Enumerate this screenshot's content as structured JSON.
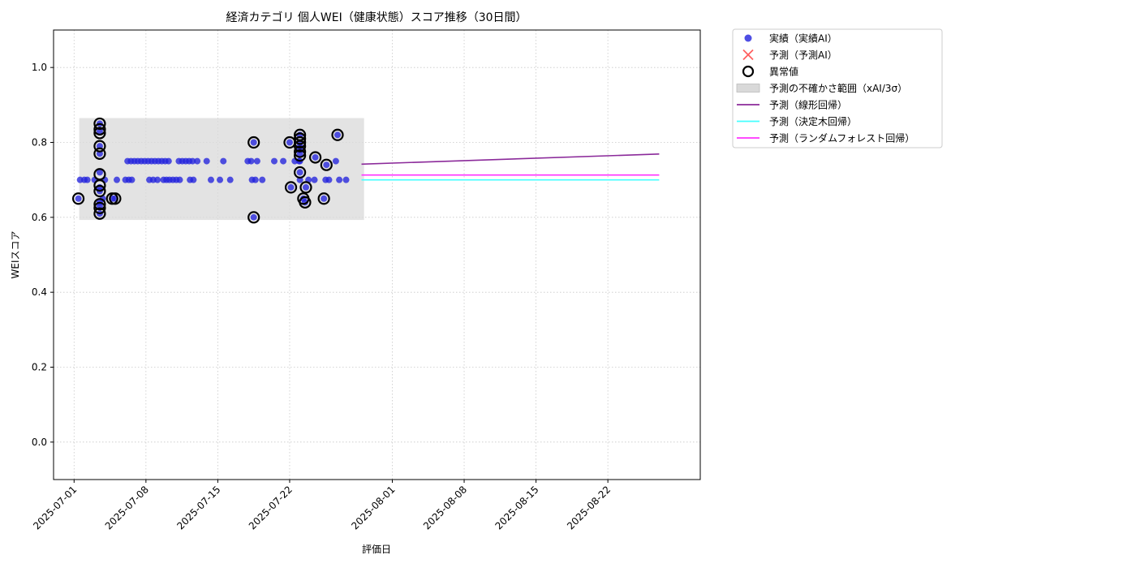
{
  "chart_data": {
    "type": "scatter",
    "title": "経済カテゴリ 個人WEI（健康状態）スコア推移（30日間）",
    "xlabel": "評価日",
    "ylabel": "WEIスコア",
    "xlim": [
      "2025-06-29",
      "2025-08-31"
    ],
    "ylim": [
      -0.1,
      1.1
    ],
    "grid": true,
    "legend_placement": "outside-top-right",
    "x_ticks": [
      "2025-07-01",
      "2025-07-08",
      "2025-07-15",
      "2025-07-22",
      "2025-08-01",
      "2025-08-08",
      "2025-08-15",
      "2025-08-22"
    ],
    "y_ticks": [
      "0.0",
      "0.2",
      "0.4",
      "0.6",
      "0.8",
      "1.0"
    ],
    "legend": [
      {
        "label": "実績（実績AI）",
        "kind": "dot",
        "color": "#2222dd"
      },
      {
        "label": "予測（予測AI）",
        "kind": "cross",
        "color": "#ff4444"
      },
      {
        "label": "異常値",
        "kind": "ring",
        "color": "#000000"
      },
      {
        "label": "予測の不確かさ範囲（xAI/3σ）",
        "kind": "band",
        "color": "#d9d9d9"
      },
      {
        "label": "予測（線形回帰）",
        "kind": "line",
        "color": "#8b2a9a"
      },
      {
        "label": "予測（決定木回帰）",
        "kind": "line",
        "color": "#44ffff"
      },
      {
        "label": "予測（ランダムフォレスト回帰）",
        "kind": "line",
        "color": "#ff33ff"
      }
    ],
    "uncertainty_band": {
      "x_start": "2025-07-01T12:00",
      "x_end": "2025-07-29T06:00",
      "y_low": 0.593,
      "y_high": 0.865
    },
    "series": [
      {
        "name": "実績（実績AI）",
        "color": "#2222dd",
        "points": [
          [
            "2025-07-01T10:00",
            0.65
          ],
          [
            "2025-07-01T14:00",
            0.7
          ],
          [
            "2025-07-02T00:00",
            0.7
          ],
          [
            "2025-07-02T07:00",
            0.7
          ],
          [
            "2025-07-03T00:00",
            0.7
          ],
          [
            "2025-07-03T12:00",
            0.85
          ],
          [
            "2025-07-03T12:00",
            0.83
          ],
          [
            "2025-07-03T12:00",
            0.79
          ],
          [
            "2025-07-03T12:00",
            0.77
          ],
          [
            "2025-07-03T12:00",
            0.72
          ],
          [
            "2025-07-03T12:00",
            0.68
          ],
          [
            "2025-07-03T12:00",
            0.67
          ],
          [
            "2025-07-03T12:00",
            0.64
          ],
          [
            "2025-07-03T12:00",
            0.63
          ],
          [
            "2025-07-03T12:00",
            0.61
          ],
          [
            "2025-07-04T00:00",
            0.7
          ],
          [
            "2025-07-03T19:00",
            0.65
          ],
          [
            "2025-07-04T17:00",
            0.65
          ],
          [
            "2025-07-05T00:00",
            0.65
          ],
          [
            "2025-07-05T04:00",
            0.7
          ],
          [
            "2025-07-06T00:00",
            0.7
          ],
          [
            "2025-07-06T05:00",
            0.75
          ],
          [
            "2025-07-06T08:00",
            0.7
          ],
          [
            "2025-07-06T13:00",
            0.75
          ],
          [
            "2025-07-06T15:00",
            0.7
          ],
          [
            "2025-07-06T21:00",
            0.75
          ],
          [
            "2025-07-07T05:00",
            0.75
          ],
          [
            "2025-07-07T13:00",
            0.75
          ],
          [
            "2025-07-07T21:00",
            0.75
          ],
          [
            "2025-07-08T05:00",
            0.75
          ],
          [
            "2025-07-08T13:00",
            0.75
          ],
          [
            "2025-07-08T21:00",
            0.75
          ],
          [
            "2025-07-08T08:00",
            0.7
          ],
          [
            "2025-07-08T17:00",
            0.7
          ],
          [
            "2025-07-09T03:00",
            0.7
          ],
          [
            "2025-07-09T05:00",
            0.75
          ],
          [
            "2025-07-09T13:00",
            0.75
          ],
          [
            "2025-07-09T21:00",
            0.75
          ],
          [
            "2025-07-09T17:00",
            0.7
          ],
          [
            "2025-07-10T00:00",
            0.7
          ],
          [
            "2025-07-10T05:00",
            0.75
          ],
          [
            "2025-07-10T07:00",
            0.7
          ],
          [
            "2025-07-10T15:00",
            0.7
          ],
          [
            "2025-07-10T23:00",
            0.7
          ],
          [
            "2025-07-11T05:00",
            0.75
          ],
          [
            "2025-07-11T07:00",
            0.7
          ],
          [
            "2025-07-11T13:00",
            0.75
          ],
          [
            "2025-07-11T21:00",
            0.75
          ],
          [
            "2025-07-12T05:00",
            0.75
          ],
          [
            "2025-07-12T07:00",
            0.7
          ],
          [
            "2025-07-12T13:00",
            0.75
          ],
          [
            "2025-07-12T15:00",
            0.7
          ],
          [
            "2025-07-13T00:00",
            0.75
          ],
          [
            "2025-07-13T22:00",
            0.75
          ],
          [
            "2025-07-14T08:00",
            0.7
          ],
          [
            "2025-07-15T05:00",
            0.7
          ],
          [
            "2025-07-15T13:00",
            0.75
          ],
          [
            "2025-07-16T05:00",
            0.7
          ],
          [
            "2025-07-17T22:00",
            0.75
          ],
          [
            "2025-07-18T12:00",
            0.8
          ],
          [
            "2025-07-18T12:00",
            0.6
          ],
          [
            "2025-07-18T08:00",
            0.7
          ],
          [
            "2025-07-18T06:00",
            0.75
          ],
          [
            "2025-07-18T16:00",
            0.7
          ],
          [
            "2025-07-18T20:00",
            0.75
          ],
          [
            "2025-07-19T08:00",
            0.7
          ],
          [
            "2025-07-20T12:00",
            0.75
          ],
          [
            "2025-07-21T09:00",
            0.75
          ],
          [
            "2025-07-22T00:00",
            0.8
          ],
          [
            "2025-07-22T03:00",
            0.68
          ],
          [
            "2025-07-22T12:00",
            0.75
          ],
          [
            "2025-07-22T22:00",
            0.75
          ],
          [
            "2025-07-23T00:00",
            0.82
          ],
          [
            "2025-07-23T00:00",
            0.8
          ],
          [
            "2025-07-23T00:00",
            0.79
          ],
          [
            "2025-07-23T00:00",
            0.78
          ],
          [
            "2025-07-23T00:00",
            0.77
          ],
          [
            "2025-07-23T00:00",
            0.75
          ],
          [
            "2025-07-23T00:00",
            0.72
          ],
          [
            "2025-07-23T00:00",
            0.7
          ],
          [
            "2025-07-23T08:00",
            0.65
          ],
          [
            "2025-07-23T12:00",
            0.64
          ],
          [
            "2025-07-23T14:00",
            0.68
          ],
          [
            "2025-07-23T20:00",
            0.7
          ],
          [
            "2025-07-24T10:00",
            0.7
          ],
          [
            "2025-07-24T12:00",
            0.76
          ],
          [
            "2025-07-25T08:00",
            0.65
          ],
          [
            "2025-07-25T12:00",
            0.7
          ],
          [
            "2025-07-25T14:00",
            0.74
          ],
          [
            "2025-07-25T20:00",
            0.7
          ],
          [
            "2025-07-26T12:00",
            0.75
          ],
          [
            "2025-07-26T16:00",
            0.82
          ],
          [
            "2025-07-26T20:00",
            0.7
          ],
          [
            "2025-07-27T12:00",
            0.7
          ]
        ]
      },
      {
        "name": "異常値",
        "color": "#000000",
        "points": [
          [
            "2025-07-01T10:00",
            0.65
          ],
          [
            "2025-07-03T12:00",
            0.85
          ],
          [
            "2025-07-03T12:00",
            0.835
          ],
          [
            "2025-07-03T12:00",
            0.825
          ],
          [
            "2025-07-03T12:00",
            0.79
          ],
          [
            "2025-07-03T12:00",
            0.77
          ],
          [
            "2025-07-03T12:00",
            0.715
          ],
          [
            "2025-07-03T12:00",
            0.685
          ],
          [
            "2025-07-03T12:00",
            0.67
          ],
          [
            "2025-07-03T12:00",
            0.635
          ],
          [
            "2025-07-03T12:00",
            0.625
          ],
          [
            "2025-07-03T12:00",
            0.61
          ],
          [
            "2025-07-04T17:00",
            0.65
          ],
          [
            "2025-07-05T00:00",
            0.65
          ],
          [
            "2025-07-18T12:00",
            0.8
          ],
          [
            "2025-07-18T12:00",
            0.6
          ],
          [
            "2025-07-22T00:00",
            0.8
          ],
          [
            "2025-07-22T03:00",
            0.68
          ],
          [
            "2025-07-23T00:00",
            0.82
          ],
          [
            "2025-07-23T00:00",
            0.81
          ],
          [
            "2025-07-23T00:00",
            0.8
          ],
          [
            "2025-07-23T00:00",
            0.79
          ],
          [
            "2025-07-23T00:00",
            0.775
          ],
          [
            "2025-07-23T00:00",
            0.765
          ],
          [
            "2025-07-23T00:00",
            0.72
          ],
          [
            "2025-07-23T08:00",
            0.65
          ],
          [
            "2025-07-23T12:00",
            0.64
          ],
          [
            "2025-07-23T14:00",
            0.68
          ],
          [
            "2025-07-24T12:00",
            0.76
          ],
          [
            "2025-07-25T08:00",
            0.65
          ],
          [
            "2025-07-25T14:00",
            0.74
          ],
          [
            "2025-07-26T16:00",
            0.82
          ]
        ]
      },
      {
        "name": "予測（線形回帰）",
        "color": "#8b2a9a",
        "points": [
          [
            "2025-07-29T00:00",
            0.742
          ],
          [
            "2025-08-27T00:00",
            0.769
          ]
        ]
      },
      {
        "name": "予測（決定木回帰）",
        "color": "#44ffff",
        "points": [
          [
            "2025-07-29T00:00",
            0.7
          ],
          [
            "2025-08-27T00:00",
            0.7
          ]
        ]
      },
      {
        "name": "予測（ランダムフォレスト回帰）",
        "color": "#ff33ff",
        "points": [
          [
            "2025-07-29T00:00",
            0.713
          ],
          [
            "2025-08-27T00:00",
            0.713
          ]
        ]
      }
    ]
  }
}
